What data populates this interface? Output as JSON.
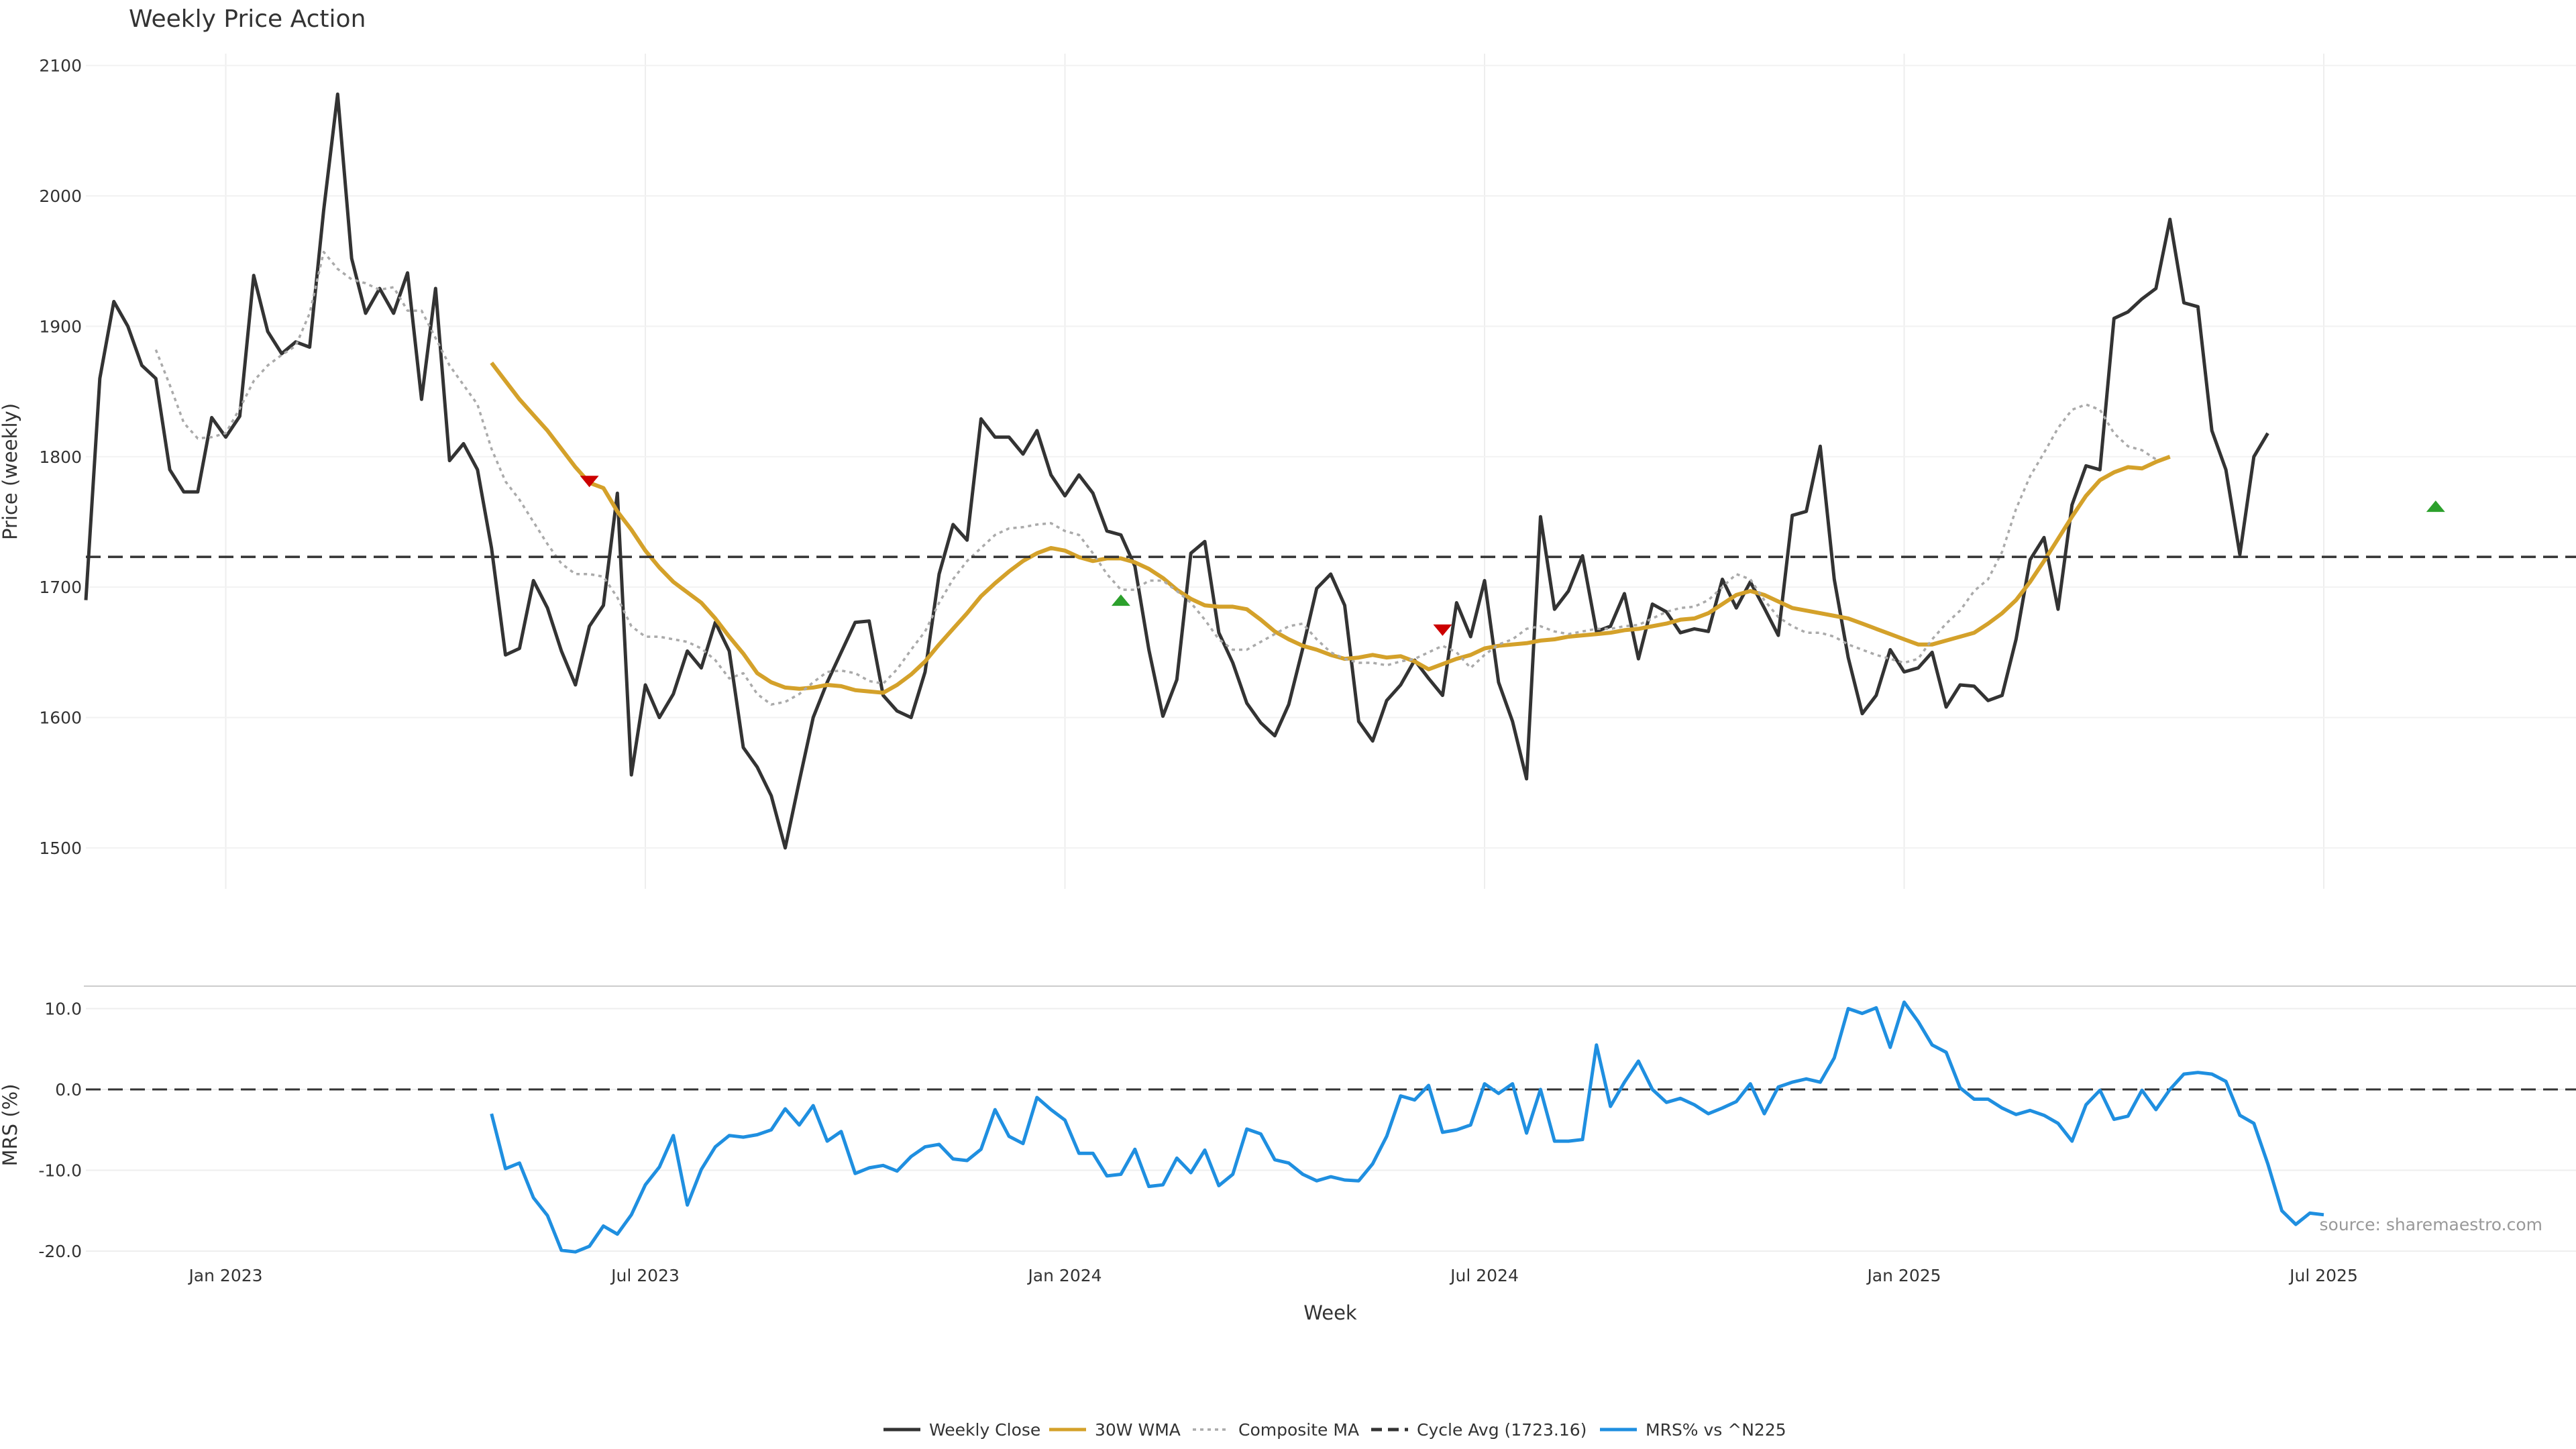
{
  "chart_data": [
    {
      "type": "line",
      "title": "Weekly Price Action",
      "ylabel": "Price (weekly)",
      "ylim": [
        1475,
        2115
      ],
      "yticks": [
        1500,
        1600,
        1700,
        1800,
        1900,
        2000,
        2100
      ],
      "grid": true,
      "series": [
        {
          "name": "Weekly Close",
          "color": "#333333",
          "style": "solid",
          "values": [
            1690,
            1860,
            1919,
            1900,
            1870,
            1860,
            1790,
            1773,
            1773,
            1830,
            1815,
            1831,
            1939,
            1896,
            1879,
            1888,
            1884,
            1989,
            2078,
            1952,
            1910,
            1929,
            1910,
            1941,
            1844,
            1929,
            1797,
            1810,
            1790,
            1730,
            1648,
            1653,
            1705,
            1684,
            1651,
            1625,
            1670,
            1686,
            1772,
            1556,
            1625,
            1600,
            1618,
            1651,
            1638,
            1673,
            1651,
            1577,
            1562,
            1540,
            1500,
            1551,
            1600,
            1627,
            1650,
            1673,
            1674,
            1617,
            1605,
            1600,
            1635,
            1710,
            1748,
            1736,
            1829,
            1815,
            1815,
            1802,
            1820,
            1786,
            1770,
            1786,
            1772,
            1743,
            1740,
            1716,
            1652,
            1601,
            1629,
            1726,
            1735,
            1665,
            1642,
            1611,
            1596,
            1586,
            1610,
            1653,
            1699,
            1710,
            1686,
            1597,
            1582,
            1613,
            1625,
            1644,
            1630,
            1617,
            1688,
            1662,
            1705,
            1627,
            1597,
            1553,
            1754,
            1683,
            1697,
            1724,
            1666,
            1670,
            1695,
            1645,
            1687,
            1681,
            1665,
            1668,
            1666,
            1706,
            1684,
            1704,
            1684,
            1663,
            1755,
            1758,
            1808,
            1706,
            1646,
            1603,
            1617,
            1652,
            1635,
            1638,
            1650,
            1608,
            1625,
            1624,
            1613,
            1617,
            1660,
            1721,
            1738,
            1683,
            1763,
            1793,
            1790,
            1906,
            1911,
            1921,
            1929,
            1982,
            1918,
            1915,
            1820,
            1790,
            1725,
            1800,
            1818
          ]
        },
        {
          "name": "30W WMA",
          "color": "#d4a12a",
          "style": "solid",
          "start_week": 29,
          "values": [
            1872,
            1858,
            1844,
            1832,
            1820,
            1806,
            1792,
            1780,
            1776,
            1758,
            1744,
            1728,
            1715,
            1704,
            1696,
            1688,
            1676,
            1662,
            1649,
            1634,
            1627,
            1623,
            1622,
            1623,
            1625,
            1624,
            1621,
            1620,
            1619,
            1625,
            1633,
            1643,
            1656,
            1668,
            1680,
            1693,
            1703,
            1712,
            1720,
            1726,
            1730,
            1728,
            1723,
            1720,
            1722,
            1722,
            1719,
            1714,
            1707,
            1698,
            1691,
            1686,
            1685,
            1685,
            1683,
            1675,
            1666,
            1660,
            1655,
            1652,
            1648,
            1645,
            1646,
            1648,
            1646,
            1647,
            1643,
            1637,
            1641,
            1645,
            1648,
            1653,
            1655,
            1656,
            1657,
            1659,
            1660,
            1662,
            1663,
            1664,
            1665,
            1667,
            1668,
            1670,
            1672,
            1675,
            1676,
            1680,
            1687,
            1694,
            1697,
            1694,
            1689,
            1684,
            1682,
            1680,
            1678,
            1676,
            1672,
            1668,
            1664,
            1660,
            1656,
            1656,
            1659,
            1662,
            1665,
            1672,
            1680,
            1690,
            1704,
            1720,
            1737,
            1754,
            1770,
            1782,
            1788,
            1792,
            1791,
            1796,
            1800
          ]
        },
        {
          "name": "Composite MA",
          "color": "#aaaaaa",
          "style": "dotted",
          "start_week": 5,
          "values": [
            1882,
            1855,
            1826,
            1814,
            1815,
            1818,
            1837,
            1858,
            1870,
            1878,
            1885,
            1910,
            1957,
            1944,
            1936,
            1933,
            1928,
            1930,
            1912,
            1912,
            1891,
            1870,
            1855,
            1840,
            1806,
            1781,
            1767,
            1750,
            1733,
            1718,
            1710,
            1710,
            1708,
            1692,
            1670,
            1662,
            1662,
            1660,
            1658,
            1653,
            1644,
            1630,
            1634,
            1618,
            1610,
            1612,
            1618,
            1627,
            1635,
            1636,
            1634,
            1628,
            1626,
            1637,
            1652,
            1666,
            1688,
            1706,
            1720,
            1730,
            1740,
            1745,
            1746,
            1748,
            1749,
            1743,
            1740,
            1726,
            1710,
            1698,
            1698,
            1705,
            1705,
            1697,
            1688,
            1675,
            1660,
            1652,
            1652,
            1658,
            1664,
            1670,
            1672,
            1660,
            1650,
            1645,
            1642,
            1642,
            1640,
            1643,
            1645,
            1650,
            1655,
            1650,
            1638,
            1648,
            1656,
            1660,
            1668,
            1670,
            1666,
            1664,
            1666,
            1668,
            1668,
            1670,
            1671,
            1676,
            1681,
            1684,
            1685,
            1690,
            1700,
            1710,
            1706,
            1690,
            1677,
            1670,
            1665,
            1665,
            1662,
            1656,
            1652,
            1648,
            1645,
            1642,
            1645,
            1660,
            1672,
            1682,
            1697,
            1706,
            1727,
            1760,
            1785,
            1803,
            1822,
            1836,
            1840,
            1836,
            1818,
            1808,
            1805,
            1798
          ]
        },
        {
          "name": "Cycle Avg (1723.16)",
          "color": "#333333",
          "style": "dashed",
          "value": 1723.16
        }
      ],
      "markers": [
        {
          "week": 36,
          "value": 1781,
          "direction": "down",
          "color": "#cc0000"
        },
        {
          "week": 74,
          "value": 1690,
          "direction": "up",
          "color": "#2ca02c"
        },
        {
          "week": 97,
          "value": 1667,
          "direction": "down",
          "color": "#cc0000"
        },
        {
          "week": 168,
          "value": 1762,
          "direction": "up",
          "color": "#2ca02c"
        }
      ]
    },
    {
      "type": "line",
      "ylabel": "MRS (%)",
      "xlabel": "Week",
      "ylim": [
        -20.5,
        12.5
      ],
      "yticks": [
        -20.0,
        -10.0,
        0.0,
        10.0
      ],
      "x_tick_labels": [
        "Jan 2023",
        "Jul 2023",
        "Jan 2024",
        "Jul 2024",
        "Jan 2025",
        "Jul 2025"
      ],
      "x_tick_weeks": [
        10,
        40,
        70,
        100,
        130,
        160
      ],
      "grid": true,
      "reference_line": {
        "value": 0.0,
        "style": "dashed",
        "color": "#333333"
      },
      "series": [
        {
          "name": "MRS% vs ^N225",
          "color": "#1f8fe0",
          "style": "solid",
          "start_week": 29,
          "values": [
            -3.0,
            -9.8,
            -9.1,
            -13.4,
            -15.6,
            -19.9,
            -20.1,
            -19.4,
            -16.9,
            -17.9,
            -15.5,
            -11.8,
            -9.6,
            -5.7,
            -14.3,
            -9.9,
            -7.1,
            -5.7,
            -5.9,
            -5.6,
            -5.0,
            -2.4,
            -4.4,
            -2.0,
            -6.4,
            -5.2,
            -10.4,
            -9.7,
            -9.4,
            -10.1,
            -8.3,
            -7.1,
            -6.8,
            -8.6,
            -8.8,
            -7.4,
            -2.5,
            -5.8,
            -6.7,
            -1.0,
            -2.5,
            -3.8,
            -7.9,
            -7.9,
            -10.7,
            -10.5,
            -7.4,
            -12.0,
            -11.8,
            -8.5,
            -10.3,
            -7.5,
            -11.9,
            -10.5,
            -4.9,
            -5.5,
            -8.7,
            -9.1,
            -10.5,
            -11.3,
            -10.8,
            -11.2,
            -11.3,
            -9.2,
            -5.8,
            -0.8,
            -1.3,
            0.5,
            -5.3,
            -5.0,
            -4.4,
            0.7,
            -0.5,
            0.7,
            -5.4,
            0.0,
            -6.4,
            -6.4,
            -6.2,
            5.5,
            -2.1,
            0.9,
            3.5,
            0.0,
            -1.6,
            -1.1,
            -1.9,
            -3.0,
            -2.3,
            -1.5,
            0.7,
            -3.0,
            0.3,
            0.9,
            1.3,
            0.9,
            3.9,
            10.0,
            9.4,
            10.1,
            5.2,
            10.8,
            8.4,
            5.5,
            4.6,
            0.2,
            -1.2,
            -1.2,
            -2.3,
            -3.1,
            -2.6,
            -3.2,
            -4.2,
            -6.4,
            -1.9,
            -0.1,
            -3.7,
            -3.3,
            -0.1,
            -2.5,
            0.0,
            1.9,
            2.1,
            1.9,
            1.0,
            -3.2,
            -4.2,
            -9.2,
            -15.0,
            -16.7,
            -15.3,
            -15.5
          ]
        }
      ]
    }
  ],
  "source_text": "source: sharemaestro.com"
}
